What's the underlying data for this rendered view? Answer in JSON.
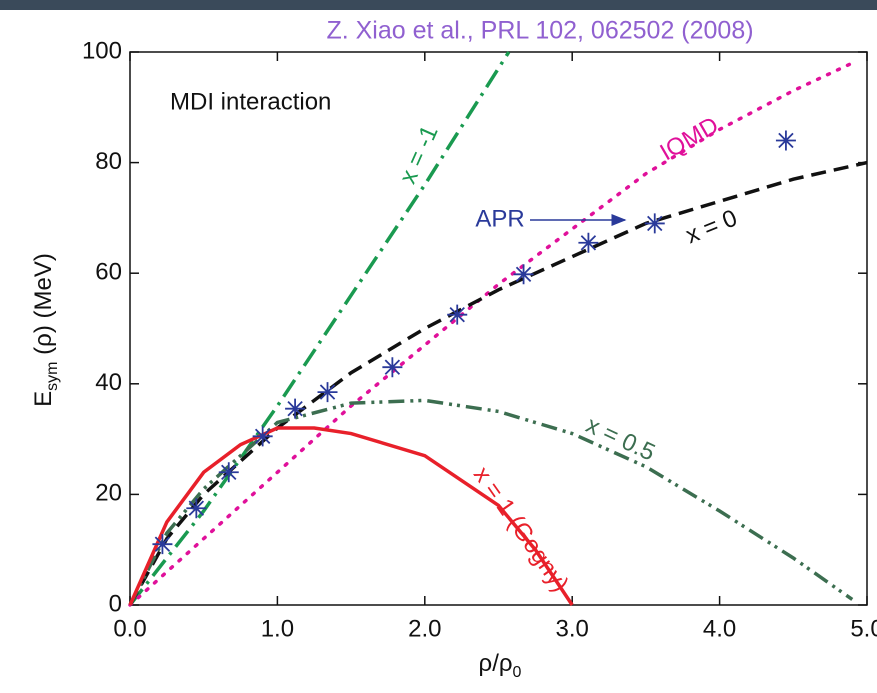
{
  "chart_data": {
    "type": "line",
    "title": "Z. Xiao et al., PRL 102, 062502 (2008)",
    "annotation": "MDI interaction",
    "xlabel": {
      "main": "ρ/ρ",
      "sub": "0"
    },
    "ylabel": {
      "main": "E",
      "sub": "sym",
      "rest": " (ρ) (MeV)"
    },
    "xlim": [
      0,
      5
    ],
    "ylim": [
      0,
      100
    ],
    "xticks": [
      {
        "value": 0,
        "label": "0.0"
      },
      {
        "value": 1,
        "label": "1.0"
      },
      {
        "value": 2,
        "label": "2.0"
      },
      {
        "value": 3,
        "label": "3.0"
      },
      {
        "value": 4,
        "label": "4.0"
      },
      {
        "value": 5,
        "label": "5.0"
      }
    ],
    "yticks": [
      0,
      20,
      40,
      60,
      80,
      100
    ],
    "series": [
      {
        "name": "x = -1",
        "type": "line",
        "color": "#1a9a50",
        "dash": "20 7 3 7",
        "x": [
          0,
          0.5,
          1,
          1.5,
          2,
          2.57
        ],
        "values": [
          0,
          17,
          36,
          56,
          76,
          100
        ]
      },
      {
        "name": "IQMD",
        "type": "line",
        "color": "#e0109a",
        "dash": "2 9",
        "x": [
          0,
          1,
          1.5,
          2,
          2.5,
          3,
          3.5,
          4,
          4.5,
          4.9
        ],
        "values": [
          0,
          24,
          36,
          47,
          58,
          68,
          78,
          86,
          93,
          98
        ]
      },
      {
        "name": "x = 0",
        "type": "line",
        "color": "#111111",
        "dash": "15 8",
        "x": [
          0,
          0.25,
          0.5,
          1,
          1.5,
          2,
          2.5,
          3,
          3.5,
          4,
          4.5,
          5
        ],
        "values": [
          0,
          12,
          20,
          32,
          42,
          50,
          57,
          63,
          69,
          73,
          77,
          80
        ]
      },
      {
        "name": "x = 0.5",
        "type": "line",
        "color": "#3c6e50",
        "dash": "16 6 3 5 3 6",
        "x": [
          0,
          0.25,
          0.5,
          1,
          1.5,
          2,
          2.5,
          3,
          3.5,
          4,
          4.5,
          4.9
        ],
        "values": [
          0,
          13,
          21,
          33,
          36.5,
          37,
          35,
          31,
          25,
          17,
          8.5,
          1
        ]
      },
      {
        "name": "x = 1 (Gogny)",
        "type": "line",
        "color": "#e8202a",
        "dash": "none",
        "x": [
          0,
          0.25,
          0.5,
          0.75,
          1,
          1.25,
          1.5,
          2,
          2.5,
          2.75,
          3
        ],
        "values": [
          0,
          15,
          24,
          29,
          32,
          32,
          31,
          27,
          18,
          10,
          0
        ]
      },
      {
        "name": "APR",
        "type": "scatter",
        "color": "#2a3a9a",
        "x": [
          0.22,
          0.45,
          0.67,
          0.9,
          1.12,
          1.34,
          1.78,
          2.22,
          2.67,
          3.11,
          3.56,
          4.45
        ],
        "values": [
          11,
          17.5,
          24,
          30.5,
          35.5,
          38.5,
          43,
          52.5,
          59.8,
          65.5,
          69,
          84
        ]
      }
    ]
  }
}
